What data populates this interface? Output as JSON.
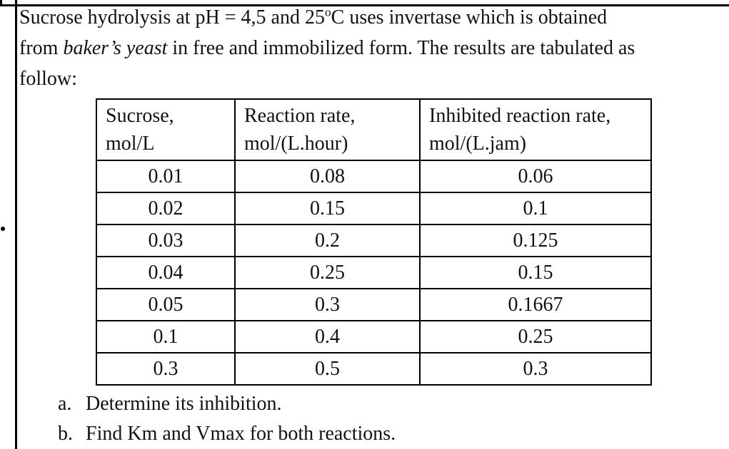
{
  "document": {
    "intro": {
      "line1_part1": "Sucrose hydrolysis at pH = 4,5 and 25",
      "line1_sup": "o",
      "line1_part2": "C uses invertase which is obtained",
      "line2_part1": "from ",
      "line2_italic": "baker’s yeast",
      "line2_part2": " in free and immobilized form. The results are tabulated as",
      "line3": "follow:"
    },
    "table": {
      "headers": [
        {
          "line1": "Sucrose,",
          "line2": "mol/L"
        },
        {
          "line1": "Reaction rate,",
          "line2": "mol/(L.hour)"
        },
        {
          "line1": "Inhibited reaction rate,",
          "line2": "mol/(L.jam)"
        }
      ],
      "rows": [
        [
          "0.01",
          "0.08",
          "0.06"
        ],
        [
          "0.02",
          "0.15",
          "0.1"
        ],
        [
          "0.03",
          "0.2",
          "0.125"
        ],
        [
          "0.04",
          "0.25",
          "0.15"
        ],
        [
          "0.05",
          "0.3",
          "0.1667"
        ],
        [
          "0.1",
          "0.4",
          "0.25"
        ],
        [
          "0.3",
          "0.5",
          "0.3"
        ]
      ]
    },
    "questions": [
      {
        "label": "a.",
        "text": "Determine its inhibition."
      },
      {
        "label": "b.",
        "text": "Find Km and Vmax for both reactions."
      }
    ],
    "colors": {
      "text": "#121212",
      "border": "#000000",
      "background": "#ffffff"
    }
  }
}
